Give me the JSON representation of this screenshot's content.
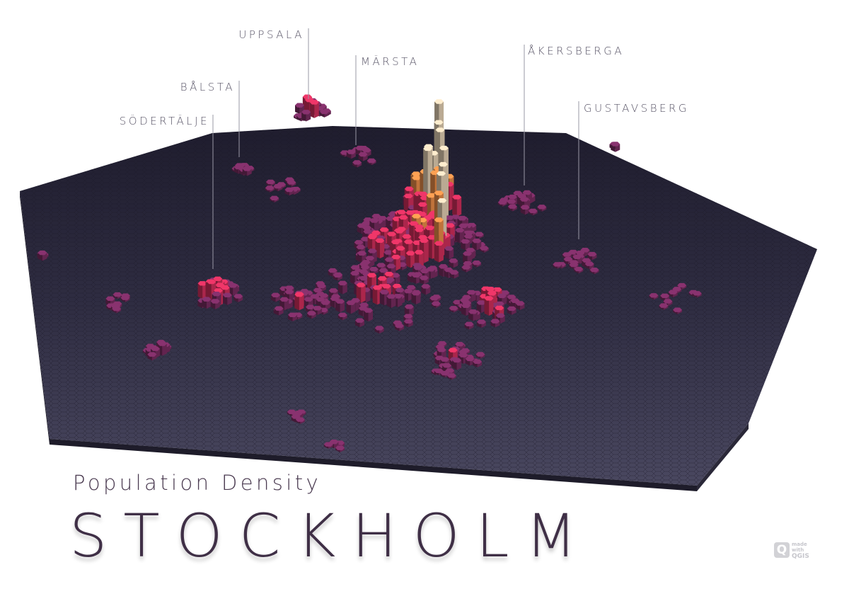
{
  "title": "STOCKHOLM",
  "subtitle": "Population Density",
  "places": [
    {
      "name": "UPPSALA"
    },
    {
      "name": "MÄRSTA"
    },
    {
      "name": "ÅKERSBERGA"
    },
    {
      "name": "BÅLSTA"
    },
    {
      "name": "GUSTAVSBERG"
    },
    {
      "name": "SÖDERTÄLJE"
    }
  ],
  "badge": {
    "made": "made",
    "with": "with",
    "qgis": "QGIS"
  },
  "colors": {
    "ground": "#36344a",
    "low": "#7a2d63",
    "mid": "#d6305e",
    "high": "#f0904a",
    "peak": "#e8d4b8",
    "title": "#3f2f46"
  }
}
